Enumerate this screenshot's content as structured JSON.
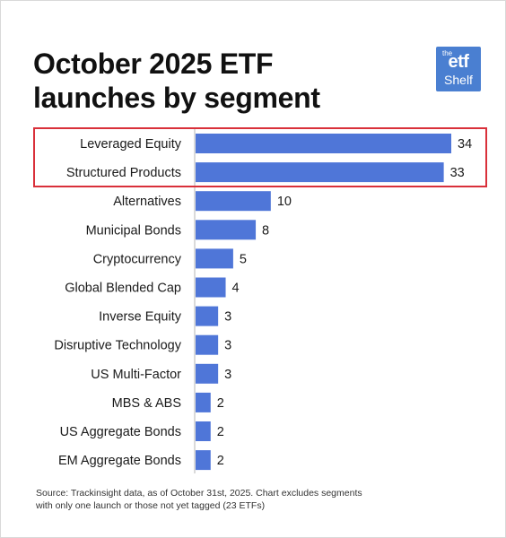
{
  "title": {
    "line1": "October 2025 ETF",
    "line2": "launches by segment"
  },
  "logo": {
    "the": "the",
    "etf": "etf",
    "shelf": "Shelf"
  },
  "source": {
    "line1": "Source: Trackinsight data, as of October 31st, 2025. Chart excludes segments",
    "line2": "with only one launch or those not yet tagged (23 ETFs)"
  },
  "colors": {
    "bar": "#4f76d8",
    "highlight_border": "#d9303a",
    "axis": "#b5b5b5"
  },
  "chart_data": {
    "type": "bar",
    "orientation": "horizontal",
    "categories": [
      "Leveraged Equity",
      "Structured Products",
      "Alternatives",
      "Municipal Bonds",
      "Cryptocurrency",
      "Global Blended Cap",
      "Inverse Equity",
      "Disruptive Technology",
      "US Multi-Factor",
      "MBS & ABS",
      "US Aggregate Bonds",
      "EM Aggregate Bonds"
    ],
    "values": [
      34,
      33,
      10,
      8,
      5,
      4,
      3,
      3,
      3,
      2,
      2,
      2
    ],
    "highlighted_categories": [
      "Leveraged Equity",
      "Structured Products"
    ],
    "xlim": [
      0,
      34
    ],
    "grid": false,
    "data_labels": true
  }
}
